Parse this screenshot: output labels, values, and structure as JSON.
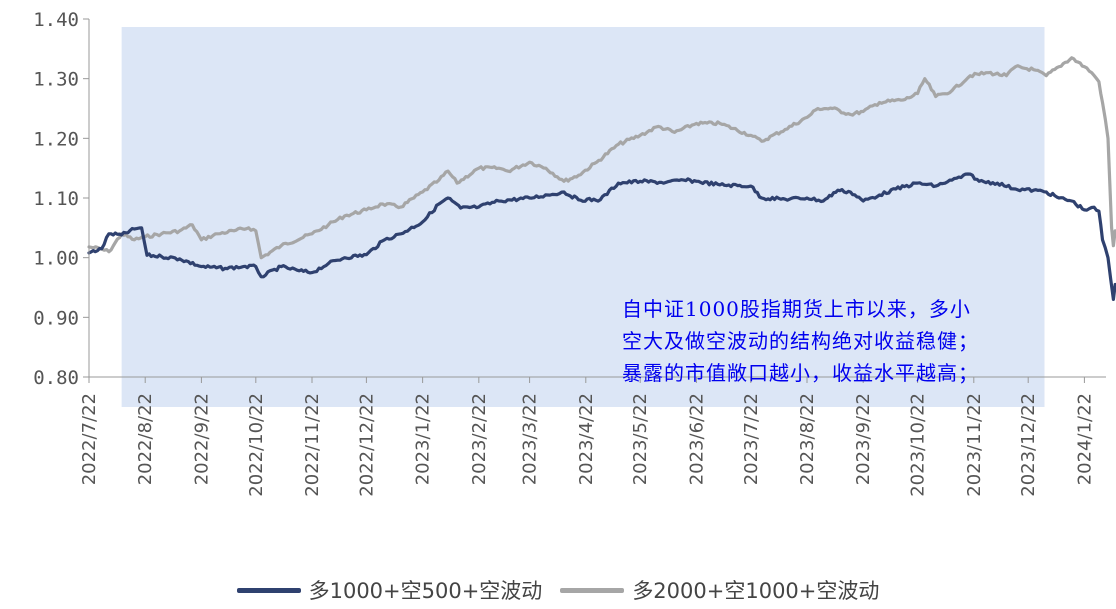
{
  "chart_data": {
    "type": "line",
    "title": "",
    "xlabel": "",
    "ylabel": "",
    "ylim": [
      0.8,
      1.4
    ],
    "yticks": [
      "1.40",
      "1.30",
      "1.20",
      "1.10",
      "1.00",
      "0.90",
      "0.80"
    ],
    "xticks": [
      "2022/7/22",
      "2022/8/22",
      "2022/9/22",
      "2022/10/22",
      "2022/11/22",
      "2022/12/22",
      "2023/1/22",
      "2023/2/22",
      "2023/3/22",
      "2023/4/22",
      "2023/5/22",
      "2023/6/22",
      "2023/7/22",
      "2023/8/22",
      "2023/9/22",
      "2023/10/22",
      "2023/11/22",
      "2023/12/22",
      "2024/1/22"
    ],
    "highlight_range": [
      "2022/8/9",
      "2023/12/31"
    ],
    "highlight_color": "#dce6f6",
    "legend_position": "bottom",
    "series": [
      {
        "name": "多1000+空500+空波动",
        "color": "#2f416f",
        "points": [
          [
            "2022/7/22",
            1.008
          ],
          [
            "2022/7/29",
            1.015
          ],
          [
            "2022/8/2",
            1.04
          ],
          [
            "2022/8/9",
            1.038
          ],
          [
            "2022/8/16",
            1.048
          ],
          [
            "2022/8/20",
            1.05
          ],
          [
            "2022/8/23",
            1.004
          ],
          [
            "2022/8/31",
            1.002
          ],
          [
            "2022/9/10",
            0.998
          ],
          [
            "2022/9/22",
            0.985
          ],
          [
            "2022/10/5",
            0.982
          ],
          [
            "2022/10/15",
            0.985
          ],
          [
            "2022/10/22",
            0.985
          ],
          [
            "2022/10/25",
            0.968
          ],
          [
            "2022/11/5",
            0.985
          ],
          [
            "2022/11/15",
            0.978
          ],
          [
            "2022/11/22",
            0.975
          ],
          [
            "2022/12/1",
            0.99
          ],
          [
            "2022/12/10",
            1.0
          ],
          [
            "2022/12/22",
            1.005
          ],
          [
            "2023/1/1",
            1.03
          ],
          [
            "2023/1/10",
            1.04
          ],
          [
            "2023/1/22",
            1.06
          ],
          [
            "2023/1/31",
            1.09
          ],
          [
            "2023/2/5",
            1.1
          ],
          [
            "2023/2/12",
            1.083
          ],
          [
            "2023/2/22",
            1.085
          ],
          [
            "2023/3/5",
            1.095
          ],
          [
            "2023/3/22",
            1.1
          ],
          [
            "2023/4/1",
            1.105
          ],
          [
            "2023/4/10",
            1.11
          ],
          [
            "2023/4/18",
            1.097
          ],
          [
            "2023/4/30",
            1.097
          ],
          [
            "2023/5/10",
            1.125
          ],
          [
            "2023/5/22",
            1.128
          ],
          [
            "2023/6/5",
            1.126
          ],
          [
            "2023/6/15",
            1.13
          ],
          [
            "2023/6/22",
            1.128
          ],
          [
            "2023/7/5",
            1.122
          ],
          [
            "2023/7/22",
            1.12
          ],
          [
            "2023/7/28",
            1.1
          ],
          [
            "2023/8/10",
            1.098
          ],
          [
            "2023/8/22",
            1.1
          ],
          [
            "2023/8/31",
            1.095
          ],
          [
            "2023/9/8",
            1.113
          ],
          [
            "2023/9/15",
            1.11
          ],
          [
            "2023/9/22",
            1.095
          ],
          [
            "2023/10/1",
            1.105
          ],
          [
            "2023/10/10",
            1.115
          ],
          [
            "2023/10/22",
            1.125
          ],
          [
            "2023/11/1",
            1.12
          ],
          [
            "2023/11/10",
            1.13
          ],
          [
            "2023/11/20",
            1.14
          ],
          [
            "2023/11/25",
            1.128
          ],
          [
            "2023/12/5",
            1.125
          ],
          [
            "2023/12/15",
            1.115
          ],
          [
            "2023/12/25",
            1.113
          ],
          [
            "2024/1/1",
            1.11
          ],
          [
            "2024/1/8",
            1.1
          ],
          [
            "2024/1/15",
            1.095
          ],
          [
            "2024/1/22",
            1.08
          ],
          [
            "2024/1/26",
            1.084
          ],
          [
            "2024/1/30",
            1.078
          ],
          [
            "2024/2/1",
            1.03
          ],
          [
            "2024/2/4",
            1.0
          ],
          [
            "2024/2/7",
            0.93
          ],
          [
            "2024/2/8",
            0.955
          ]
        ]
      },
      {
        "name": "多2000+空1000+空波动",
        "color": "#a6a6a6",
        "points": [
          [
            "2022/7/22",
            1.018
          ],
          [
            "2022/7/28",
            1.015
          ],
          [
            "2022/8/2",
            1.01
          ],
          [
            "2022/8/9",
            1.04
          ],
          [
            "2022/8/16",
            1.03
          ],
          [
            "2022/8/22",
            1.035
          ],
          [
            "2022/8/31",
            1.04
          ],
          [
            "2022/9/10",
            1.045
          ],
          [
            "2022/9/17",
            1.055
          ],
          [
            "2022/9/22",
            1.03
          ],
          [
            "2022/10/1",
            1.04
          ],
          [
            "2022/10/10",
            1.045
          ],
          [
            "2022/10/18",
            1.05
          ],
          [
            "2022/10/22",
            1.045
          ],
          [
            "2022/10/25",
            1.0
          ],
          [
            "2022/11/5",
            1.02
          ],
          [
            "2022/11/22",
            1.04
          ],
          [
            "2022/12/1",
            1.055
          ],
          [
            "2022/12/10",
            1.07
          ],
          [
            "2022/12/22",
            1.08
          ],
          [
            "2022/12/31",
            1.09
          ],
          [
            "2023/1/10",
            1.085
          ],
          [
            "2023/1/22",
            1.11
          ],
          [
            "2023/1/31",
            1.13
          ],
          [
            "2023/2/5",
            1.145
          ],
          [
            "2023/2/10",
            1.125
          ],
          [
            "2023/2/22",
            1.15
          ],
          [
            "2023/3/5",
            1.15
          ],
          [
            "2023/3/10",
            1.145
          ],
          [
            "2023/3/22",
            1.16
          ],
          [
            "2023/3/31",
            1.15
          ],
          [
            "2023/4/10",
            1.128
          ],
          [
            "2023/4/18",
            1.138
          ],
          [
            "2023/4/28",
            1.16
          ],
          [
            "2023/5/10",
            1.19
          ],
          [
            "2023/5/22",
            1.205
          ],
          [
            "2023/6/1",
            1.22
          ],
          [
            "2023/6/10",
            1.21
          ],
          [
            "2023/6/22",
            1.225
          ],
          [
            "2023/7/5",
            1.225
          ],
          [
            "2023/7/22",
            1.205
          ],
          [
            "2023/7/28",
            1.195
          ],
          [
            "2023/8/10",
            1.215
          ],
          [
            "2023/8/22",
            1.235
          ],
          [
            "2023/8/28",
            1.25
          ],
          [
            "2023/9/5",
            1.25
          ],
          [
            "2023/9/15",
            1.24
          ],
          [
            "2023/9/22",
            1.245
          ],
          [
            "2023/10/1",
            1.26
          ],
          [
            "2023/10/15",
            1.265
          ],
          [
            "2023/10/22",
            1.275
          ],
          [
            "2023/10/26",
            1.3
          ],
          [
            "2023/11/1",
            1.27
          ],
          [
            "2023/11/10",
            1.28
          ],
          [
            "2023/11/20",
            1.305
          ],
          [
            "2023/11/30",
            1.31
          ],
          [
            "2023/12/10",
            1.305
          ],
          [
            "2023/12/15",
            1.32
          ],
          [
            "2023/12/25",
            1.315
          ],
          [
            "2024/1/1",
            1.305
          ],
          [
            "2024/1/8",
            1.32
          ],
          [
            "2024/1/15",
            1.335
          ],
          [
            "2024/1/22",
            1.32
          ],
          [
            "2024/1/26",
            1.31
          ],
          [
            "2024/1/30",
            1.295
          ],
          [
            "2024/2/1",
            1.26
          ],
          [
            "2024/2/4",
            1.2
          ],
          [
            "2024/2/6",
            1.05
          ],
          [
            "2024/2/7",
            1.02
          ],
          [
            "2024/2/8",
            1.045
          ]
        ]
      }
    ]
  },
  "annotation": {
    "lines": [
      "自中证1000股指期货上市以来，多小",
      "空大及做空波动的结构绝对收益稳健；",
      "暴露的市值敞口越小，收益水平越高；"
    ]
  },
  "legend": {
    "items": [
      {
        "label": "多1000+空500+空波动",
        "color": "#2f416f"
      },
      {
        "label": "多2000+空1000+空波动",
        "color": "#a6a6a6"
      }
    ]
  }
}
